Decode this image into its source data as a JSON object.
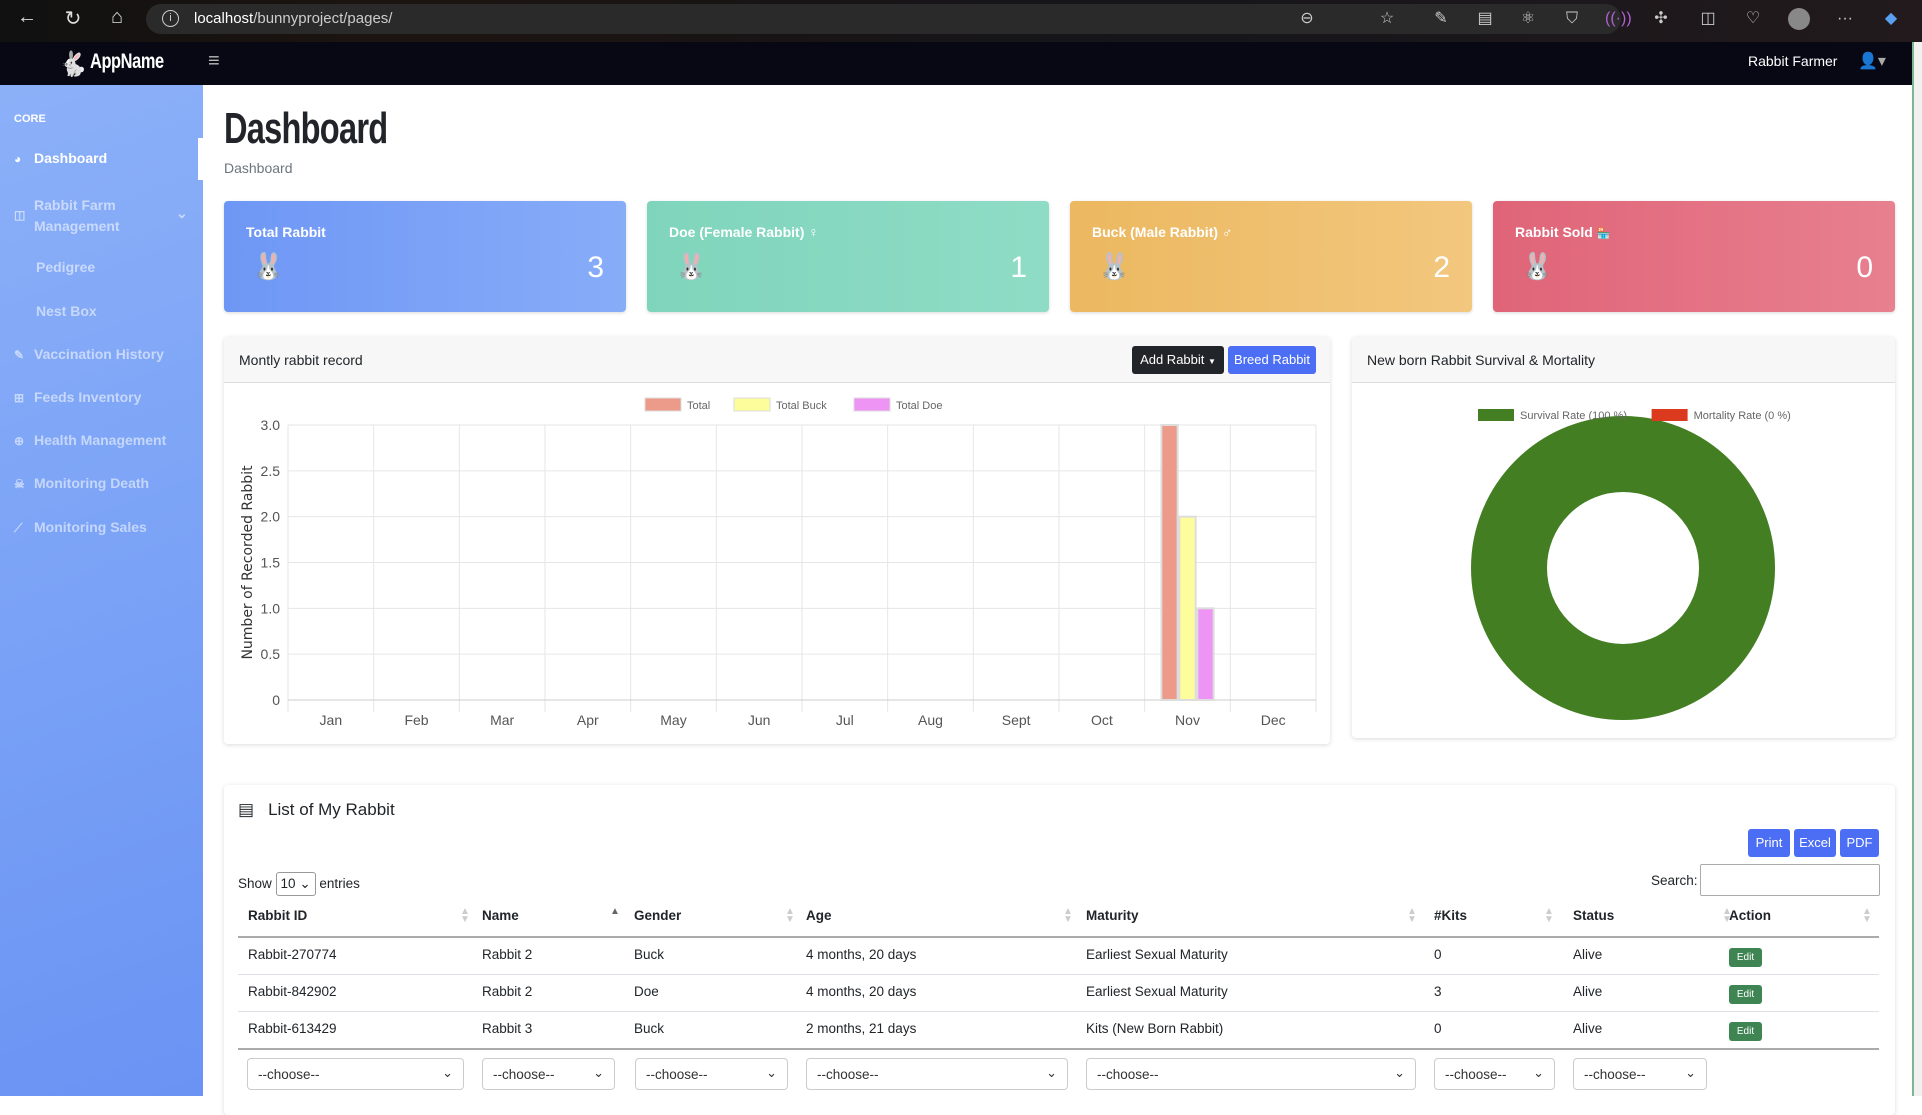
{
  "browser": {
    "url_host": "localhost",
    "url_path": "/bunnyproject/pages/"
  },
  "navbar": {
    "app_name": "AppName",
    "user_name": "Rabbit Farmer"
  },
  "sidebar": {
    "heading": "CORE",
    "items": [
      {
        "label": "Dashboard",
        "icon": "gauge-icon"
      },
      {
        "label": "Rabbit Farm",
        "label2": "Management",
        "icon": "columns-icon"
      },
      {
        "label": "Pedigree"
      },
      {
        "label": "Nest Box"
      },
      {
        "label": "Vaccination History",
        "icon": "syringe-icon"
      },
      {
        "label": "Feeds Inventory",
        "icon": "table-icon"
      },
      {
        "label": "Health Management",
        "icon": "medical-icon"
      },
      {
        "label": "Monitoring Death",
        "icon": "skull-icon"
      },
      {
        "label": "Monitoring Sales",
        "icon": "chart-line-icon"
      }
    ]
  },
  "page": {
    "title": "Dashboard",
    "breadcrumb": "Dashboard"
  },
  "cards": [
    {
      "title": "Total Rabbit",
      "value": "3",
      "color": "#7ba3f7"
    },
    {
      "title": "Doe (Female Rabbit)",
      "symbol": "♀",
      "value": "1",
      "color": "#86d8bf"
    },
    {
      "title": "Buck (Male Rabbit)",
      "symbol": "♂",
      "value": "2",
      "color": "#efbf6c"
    },
    {
      "title": "Rabbit Sold",
      "symbol": "🏪",
      "value": "0",
      "color": "#e36f82"
    }
  ],
  "monthly": {
    "title": "Montly rabbit record",
    "add_button": "Add Rabbit",
    "breed_button": "Breed Rabbit"
  },
  "survival": {
    "title": "New born Rabbit Survival & Mortality"
  },
  "chart_data": [
    {
      "type": "bar",
      "title": "Montly rabbit record",
      "ylabel": "Number of Recorded Rabbit",
      "xlabel": "",
      "categories": [
        "Jan",
        "Feb",
        "Mar",
        "Apr",
        "May",
        "Jun",
        "Jul",
        "Aug",
        "Sept",
        "Oct",
        "Nov",
        "Dec"
      ],
      "ylim": [
        0,
        3
      ],
      "yticks": [
        "0",
        "0.5",
        "1.0",
        "1.5",
        "2.0",
        "2.5",
        "3.0"
      ],
      "legend": "top",
      "grid": true,
      "series": [
        {
          "name": "Total",
          "color": "#ec9a8a",
          "values": [
            0,
            0,
            0,
            0,
            0,
            0,
            0,
            0,
            0,
            0,
            3,
            0
          ]
        },
        {
          "name": "Total Buck",
          "color": "#fdfd9c",
          "values": [
            0,
            0,
            0,
            0,
            0,
            0,
            0,
            0,
            0,
            0,
            2,
            0
          ]
        },
        {
          "name": "Total Doe",
          "color": "#ee94f4",
          "values": [
            0,
            0,
            0,
            0,
            0,
            0,
            0,
            0,
            0,
            0,
            1,
            0
          ]
        }
      ]
    },
    {
      "type": "pie",
      "variant": "doughnut",
      "legend": "top",
      "slices": [
        {
          "name": "Survival Rate (100 %)",
          "value": 100,
          "color": "#437e23"
        },
        {
          "name": "Mortality Rate (0 %)",
          "value": 0,
          "color": "#db3a1e"
        }
      ]
    }
  ],
  "table": {
    "title": "List of My Rabbit",
    "buttons": [
      "Print",
      "Excel",
      "PDF"
    ],
    "show_label": "Show",
    "entries_value": "10",
    "entries_label": "entries",
    "search_label": "Search:",
    "search_value": "",
    "columns": [
      "Rabbit ID",
      "Name",
      "Gender",
      "Age",
      "Maturity",
      "#Kits",
      "Status",
      "Action"
    ],
    "rows": [
      [
        "Rabbit-270774",
        "Rabbit 2",
        "Buck",
        "4 months, 20 days",
        "Earliest Sexual Maturity",
        "0",
        "Alive",
        "Edit"
      ],
      [
        "Rabbit-842902",
        "Rabbit 2",
        "Doe",
        "4 months, 20 days",
        "Earliest Sexual Maturity",
        "3",
        "Alive",
        "Edit"
      ],
      [
        "Rabbit-613429",
        "Rabbit 3",
        "Buck",
        "2 months, 21 days",
        "Kits (New Born Rabbit)",
        "0",
        "Alive",
        "Edit"
      ]
    ],
    "filter_placeholder": "--choose--"
  }
}
